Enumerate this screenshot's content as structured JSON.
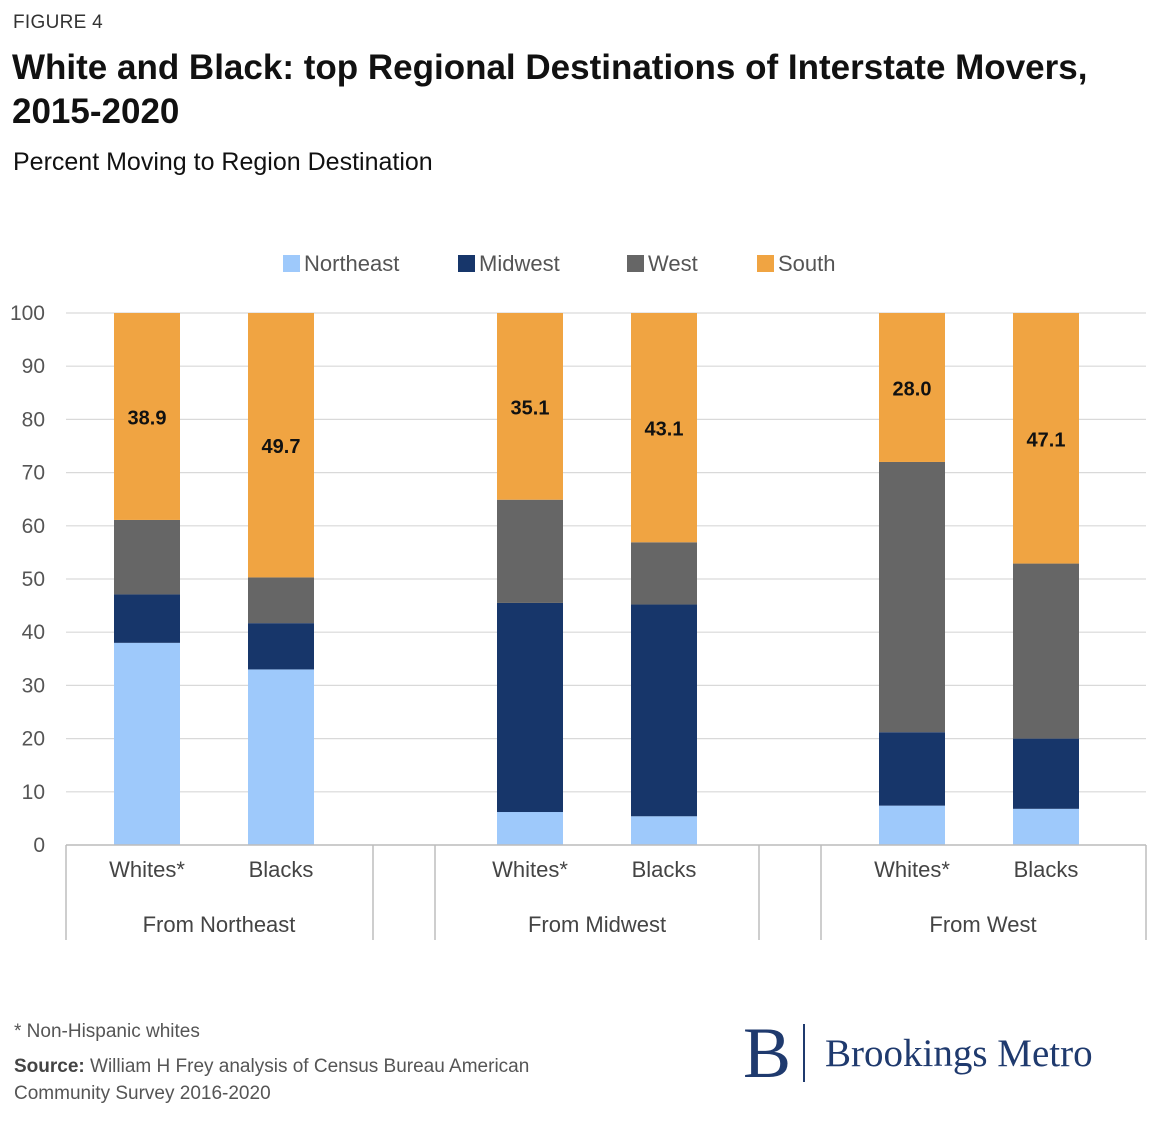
{
  "figure_label": "FIGURE 4",
  "title": "White and Black: top Regional Destinations of Interstate Movers, 2015-2020",
  "subtitle": "Percent Moving to Region Destination",
  "footnote": "* Non-Hispanic whites",
  "source_label": "Source:",
  "source_text": "William H Frey analysis of Census Bureau American Community Survey 2016-2020",
  "logo": {
    "letter": "B",
    "name": "Brookings Metro"
  },
  "chart_data": {
    "type": "bar",
    "stacked": true,
    "groups": [
      "From Northeast",
      "From Midwest",
      "From West"
    ],
    "categories": [
      "Whites*",
      "Blacks",
      "Whites*",
      "Blacks",
      "Whites*",
      "Blacks"
    ],
    "category_group": [
      0,
      0,
      1,
      1,
      2,
      2
    ],
    "series": [
      {
        "name": "Northeast",
        "color": "#9ec9fb",
        "values": [
          38.0,
          33.0,
          6.2,
          5.4,
          7.4,
          6.8
        ]
      },
      {
        "name": "Midwest",
        "color": "#17366a",
        "values": [
          9.1,
          8.7,
          39.3,
          39.8,
          13.8,
          13.2
        ]
      },
      {
        "name": "West",
        "color": "#666666",
        "values": [
          14.0,
          8.6,
          19.4,
          11.7,
          50.8,
          32.9
        ]
      },
      {
        "name": "South",
        "color": "#f0a442",
        "values": [
          38.9,
          49.7,
          35.1,
          43.1,
          28.0,
          47.1
        ]
      }
    ],
    "data_labels": {
      "series": "South",
      "labels": [
        "38.9",
        "49.7",
        "35.1",
        "43.1",
        "28.0",
        "47.1"
      ]
    },
    "y_ticks": [
      0,
      10,
      20,
      30,
      40,
      50,
      60,
      70,
      80,
      90,
      100
    ],
    "ylim": [
      0,
      100
    ],
    "grid": true,
    "legend_position": "top"
  }
}
